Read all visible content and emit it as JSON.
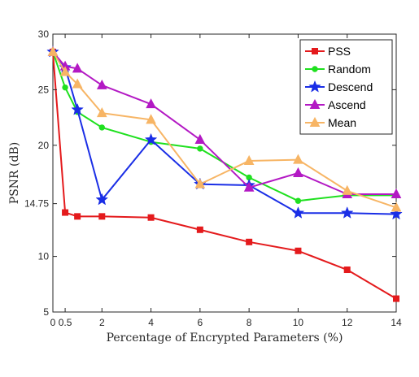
{
  "chart_data": {
    "type": "line",
    "xlabel": "Percentage of Encrypted Parameters (%)",
    "ylabel": "PSNR (dB)",
    "xlim": [
      0,
      14
    ],
    "ylim": [
      5,
      30
    ],
    "x_ticks": [
      {
        "value": 0,
        "label": "0"
      },
      {
        "value": 0.5,
        "label": "0.5"
      },
      {
        "value": 2,
        "label": "2"
      },
      {
        "value": 4,
        "label": "4"
      },
      {
        "value": 6,
        "label": "6"
      },
      {
        "value": 8,
        "label": "8"
      },
      {
        "value": 10,
        "label": "10"
      },
      {
        "value": 12,
        "label": "12"
      },
      {
        "value": 14,
        "label": "14"
      }
    ],
    "y_ticks": [
      {
        "value": 5,
        "label": "5"
      },
      {
        "value": 10,
        "label": "10"
      },
      {
        "value": 14.75,
        "label": "14.75"
      },
      {
        "value": 20,
        "label": "20"
      },
      {
        "value": 25,
        "label": "25"
      },
      {
        "value": 30,
        "label": "30"
      }
    ],
    "grid": false,
    "legend_position": "top-right",
    "series": [
      {
        "name": "PSS",
        "color": "#e41a1c",
        "marker": "square",
        "x": [
          0,
          0.5,
          1,
          2,
          4,
          6,
          8,
          10,
          12,
          14
        ],
        "y": [
          28.4,
          13.95,
          13.6,
          13.6,
          13.5,
          12.4,
          11.3,
          10.5,
          8.8,
          6.2
        ]
      },
      {
        "name": "Random",
        "color": "#1fe01f",
        "marker": "circle",
        "x": [
          0,
          0.5,
          1,
          2,
          4,
          6,
          8,
          10,
          12,
          14
        ],
        "y": [
          28.4,
          25.2,
          23.0,
          21.6,
          20.3,
          19.7,
          17.1,
          15.0,
          15.5,
          15.5
        ]
      },
      {
        "name": "Descend",
        "color": "#1a2ee6",
        "marker": "star",
        "x": [
          0,
          0.5,
          1,
          2,
          4,
          6,
          8,
          10,
          12,
          14
        ],
        "y": [
          28.4,
          27.0,
          23.2,
          15.1,
          20.5,
          16.5,
          16.4,
          13.9,
          13.9,
          13.8
        ]
      },
      {
        "name": "Ascend",
        "color": "#b319c4",
        "marker": "triangle",
        "x": [
          0,
          0.5,
          1,
          2,
          4,
          6,
          8,
          10,
          12,
          14
        ],
        "y": [
          28.4,
          27.1,
          26.9,
          25.4,
          23.7,
          20.5,
          16.2,
          17.5,
          15.6,
          15.6
        ]
      },
      {
        "name": "Mean",
        "color": "#f7b565",
        "marker": "triangle",
        "x": [
          0,
          0.5,
          1,
          2,
          4,
          6,
          8,
          10,
          12,
          14
        ],
        "y": [
          28.4,
          26.6,
          25.5,
          22.9,
          22.3,
          16.5,
          18.6,
          18.7,
          15.9,
          14.4
        ]
      }
    ]
  }
}
